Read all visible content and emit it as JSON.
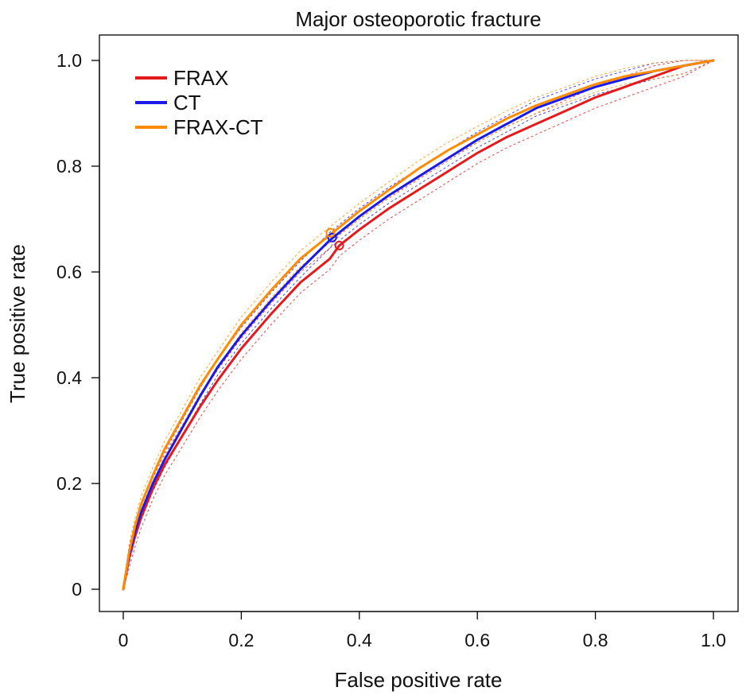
{
  "chart_data": {
    "type": "line",
    "title": "Major osteoporotic fracture",
    "xlabel": "False positive rate",
    "ylabel": "True positive rate",
    "xlim": [
      0,
      1
    ],
    "ylim": [
      0,
      1
    ],
    "xticks": [
      0,
      0.2,
      0.4,
      0.6,
      0.8,
      1.0
    ],
    "xtick_labels": [
      "0",
      "0.2",
      "0.4",
      "0.6",
      "0.8",
      "1.0"
    ],
    "yticks": [
      0,
      0.2,
      0.4,
      0.6,
      0.8,
      1.0
    ],
    "ytick_labels": [
      "0",
      "0.2",
      "0.4",
      "0.6",
      "0.8",
      "1.0"
    ],
    "legend_position": "top-left",
    "series": [
      {
        "name": "FRAX",
        "color": "#e41a1c",
        "x": [
          0,
          0.01,
          0.02,
          0.03,
          0.05,
          0.07,
          0.1,
          0.13,
          0.16,
          0.2,
          0.25,
          0.3,
          0.35,
          0.366,
          0.4,
          0.45,
          0.5,
          0.55,
          0.6,
          0.65,
          0.7,
          0.75,
          0.8,
          0.85,
          0.9,
          0.95,
          1.0
        ],
        "y": [
          0,
          0.06,
          0.1,
          0.135,
          0.19,
          0.235,
          0.29,
          0.345,
          0.395,
          0.455,
          0.52,
          0.58,
          0.625,
          0.65,
          0.68,
          0.72,
          0.755,
          0.79,
          0.825,
          0.855,
          0.88,
          0.905,
          0.93,
          0.95,
          0.97,
          0.99,
          1.0
        ],
        "ci_offset": 0.02,
        "cutoff_point": [
          0.366,
          0.65
        ]
      },
      {
        "name": "CT",
        "color": "#1a1ae6",
        "x": [
          0,
          0.01,
          0.02,
          0.03,
          0.05,
          0.07,
          0.1,
          0.13,
          0.16,
          0.2,
          0.25,
          0.3,
          0.35,
          0.4,
          0.45,
          0.5,
          0.55,
          0.6,
          0.65,
          0.7,
          0.75,
          0.8,
          0.85,
          0.9,
          0.95,
          1.0
        ],
        "y": [
          0,
          0.065,
          0.11,
          0.145,
          0.2,
          0.245,
          0.305,
          0.365,
          0.42,
          0.48,
          0.545,
          0.605,
          0.66,
          0.705,
          0.745,
          0.78,
          0.815,
          0.85,
          0.88,
          0.91,
          0.93,
          0.95,
          0.965,
          0.98,
          0.99,
          1.0
        ],
        "ci_offset": 0.015,
        "cutoff_point": [
          0.354,
          0.665
        ]
      },
      {
        "name": "FRAX-CT",
        "color": "#ff8c00",
        "x": [
          0,
          0.01,
          0.02,
          0.03,
          0.05,
          0.07,
          0.1,
          0.13,
          0.16,
          0.2,
          0.25,
          0.3,
          0.35,
          0.4,
          0.45,
          0.5,
          0.55,
          0.6,
          0.65,
          0.7,
          0.75,
          0.8,
          0.85,
          0.9,
          0.95,
          1.0
        ],
        "y": [
          0,
          0.07,
          0.12,
          0.16,
          0.215,
          0.265,
          0.325,
          0.385,
          0.435,
          0.5,
          0.565,
          0.625,
          0.67,
          0.715,
          0.755,
          0.795,
          0.83,
          0.86,
          0.89,
          0.915,
          0.935,
          0.955,
          0.97,
          0.98,
          0.99,
          1.0
        ],
        "ci_offset": 0.015,
        "cutoff_point": [
          0.351,
          0.674
        ]
      }
    ]
  }
}
